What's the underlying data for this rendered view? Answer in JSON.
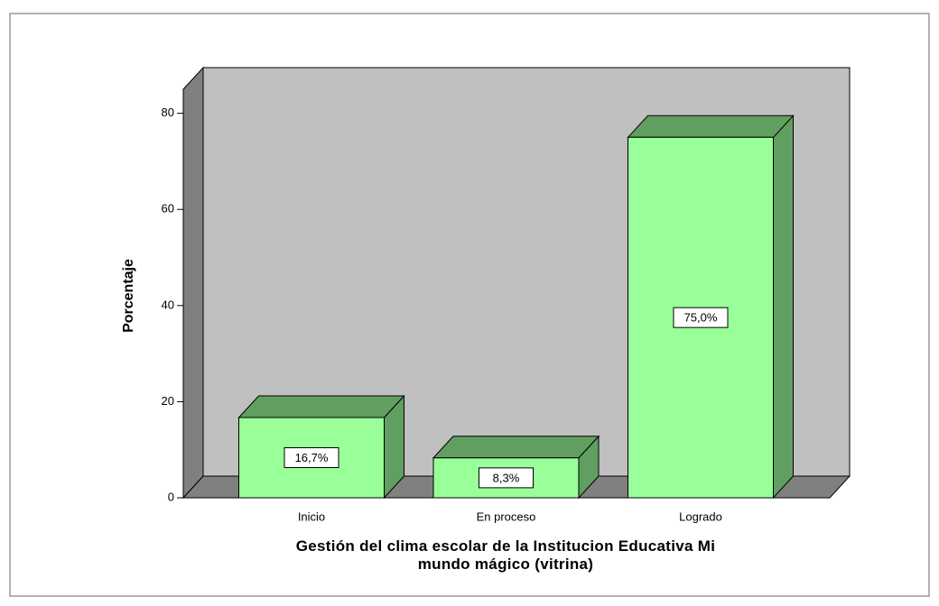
{
  "chart_data": {
    "type": "bar3d",
    "categories": [
      "Inicio",
      "En proceso",
      "Logrado"
    ],
    "values": [
      16.7,
      8.3,
      75.0
    ],
    "value_labels": [
      "16,7%",
      "8,3%",
      "75,0%"
    ],
    "color": "#99ff99",
    "side_color": "#609f60",
    "ylabel": "Porcentaje",
    "xlabel": "Gestión del clima escolar de la Institucion Educativa Mi mundo mágico (vitrina)",
    "ylim": [
      0,
      85
    ],
    "yticks": [
      0,
      20,
      40,
      60,
      80
    ]
  }
}
